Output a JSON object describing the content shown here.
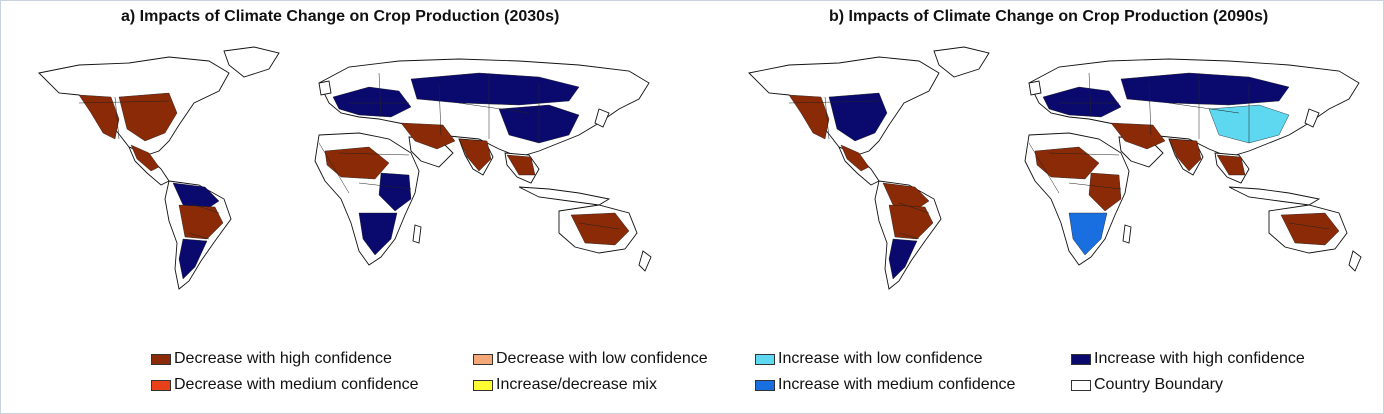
{
  "panels": [
    {
      "id": "a",
      "title": "a) Impacts of Climate Change on Crop Production (2030s)",
      "region_categories": {
        "north_america_west": "decrease_high",
        "north_america_east": "decrease_high",
        "central_america": "decrease_high",
        "south_america_north": "increase_high",
        "south_america_central": "decrease_high",
        "south_america_south": "increase_high",
        "europe": "increase_high",
        "russia": "increase_high",
        "middle_east": "decrease_high",
        "africa_west": "decrease_high",
        "africa_east": "increase_high",
        "africa_south": "increase_high",
        "south_asia": "decrease_high",
        "east_asia": "increase_high",
        "southeast_asia": "decrease_high",
        "australia": "decrease_high"
      }
    },
    {
      "id": "b",
      "title": "b) Impacts of Climate Change on Crop Production (2090s)",
      "region_categories": {
        "north_america_west": "decrease_high",
        "north_america_east": "increase_high",
        "central_america": "decrease_high",
        "south_america_north": "decrease_high",
        "south_america_central": "decrease_high",
        "south_america_south": "increase_high",
        "europe": "increase_high",
        "russia": "increase_high",
        "middle_east": "decrease_high",
        "africa_west": "decrease_high",
        "africa_east": "decrease_high",
        "africa_south": "increase_medium",
        "south_asia": "decrease_high",
        "east_asia": "increase_low",
        "southeast_asia": "decrease_high",
        "australia": "decrease_high"
      }
    }
  ],
  "legend": [
    {
      "key": "decrease_high",
      "label": "Decrease with high confidence",
      "color": "#8b2a06"
    },
    {
      "key": "decrease_medium",
      "label": "Decrease with medium confidence",
      "color": "#e8411a"
    },
    {
      "key": "decrease_low",
      "label": "Decrease with low confidence",
      "color": "#f4a777"
    },
    {
      "key": "mix",
      "label": "Increase/decrease mix",
      "color": "#ffff33"
    },
    {
      "key": "increase_low",
      "label": "Increase with low confidence",
      "color": "#5ed8f0"
    },
    {
      "key": "increase_medium",
      "label": "Increase with medium confidence",
      "color": "#1a6fe0"
    },
    {
      "key": "increase_high",
      "label": "Increase with high confidence",
      "color": "#0a0a6e"
    },
    {
      "key": "boundary",
      "label": "Country Boundary",
      "color": "#ffffff"
    }
  ]
}
